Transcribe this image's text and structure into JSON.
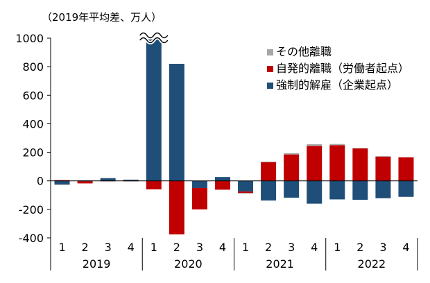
{
  "chart_data": {
    "type": "bar",
    "stacked": true,
    "unit_label": "（2019年平均差、万人）",
    "categories": [
      "1",
      "2",
      "3",
      "4",
      "1",
      "2",
      "3",
      "4",
      "1",
      "2",
      "3",
      "4",
      "1",
      "2",
      "3",
      "4"
    ],
    "years": [
      "2019",
      "2020",
      "2021",
      "2022"
    ],
    "ylim": [
      -400,
      1000
    ],
    "yticks": [
      -400,
      -200,
      0,
      200,
      400,
      600,
      800,
      1000
    ],
    "axis_break_at": 1000,
    "series": [
      {
        "name": "強制的解雇（企業起点）",
        "color": "#1f4e79",
        "values": [
          -25,
          -3,
          18,
          8,
          1050,
          820,
          -50,
          27,
          -75,
          -138,
          -118,
          -160,
          -130,
          -133,
          -122,
          -112
        ]
      },
      {
        "name": "自発的離職（労働者起点）",
        "color": "#c00000",
        "values": [
          5,
          -15,
          -3,
          -3,
          -60,
          -375,
          -150,
          -62,
          -10,
          130,
          185,
          245,
          250,
          227,
          170,
          165
        ]
      },
      {
        "name": "その他離職",
        "color": "#a6a6a6",
        "values": [
          -5,
          5,
          2,
          0,
          0,
          0,
          0,
          0,
          -5,
          5,
          8,
          12,
          8,
          3,
          3,
          0
        ]
      }
    ],
    "legend_order": [
      "その他離職",
      "自発的離職（労働者起点）",
      "強制的解雇（企業起点）"
    ],
    "legend_position": "top-right"
  }
}
